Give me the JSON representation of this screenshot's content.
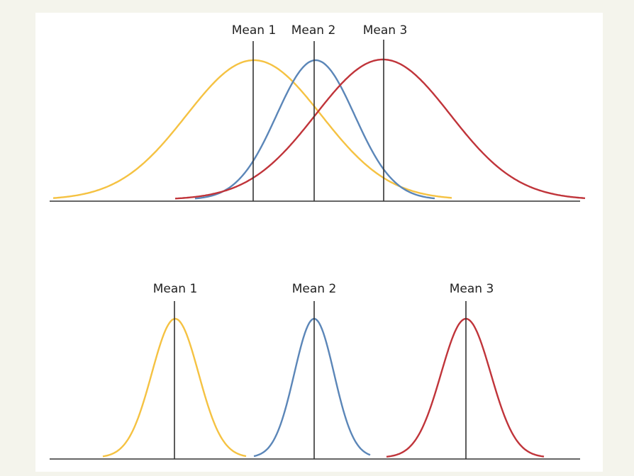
{
  "top": {
    "labels": [
      "Mean 1",
      "Mean 2",
      "Mean 3"
    ]
  },
  "bottom": {
    "labels": [
      "Mean 1",
      "Mean 2",
      "Mean 3"
    ]
  }
}
